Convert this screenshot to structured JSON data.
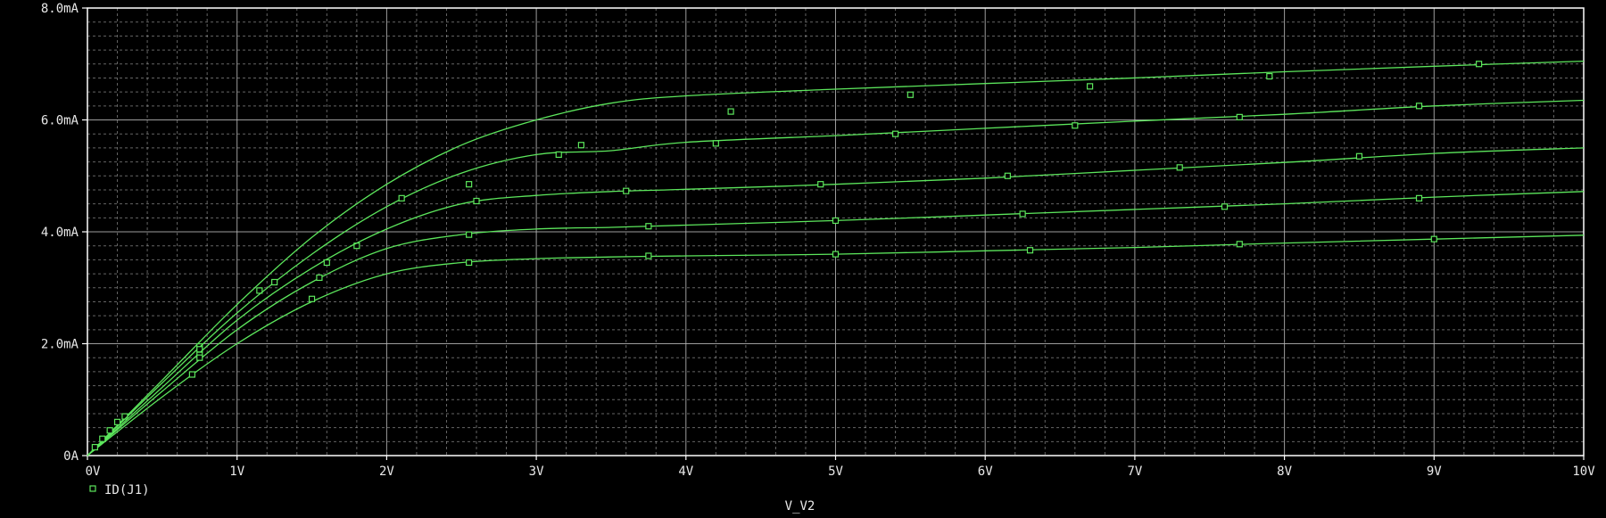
{
  "chart_data": {
    "type": "line",
    "xlabel": "V_V2",
    "ylabel": "",
    "xlim": [
      0,
      10
    ],
    "ylim": [
      0,
      8
    ],
    "x_ticks": [
      {
        "v": 0,
        "label": "0V"
      },
      {
        "v": 1,
        "label": "1V"
      },
      {
        "v": 2,
        "label": "2V"
      },
      {
        "v": 3,
        "label": "3V"
      },
      {
        "v": 4,
        "label": "4V"
      },
      {
        "v": 5,
        "label": "5V"
      },
      {
        "v": 6,
        "label": "6V"
      },
      {
        "v": 7,
        "label": "7V"
      },
      {
        "v": 8,
        "label": "8V"
      },
      {
        "v": 9,
        "label": "9V"
      },
      {
        "v": 10,
        "label": "10V"
      }
    ],
    "y_ticks": [
      {
        "v": 0,
        "label": "0A"
      },
      {
        "v": 2,
        "label": "2.0mA"
      },
      {
        "v": 4,
        "label": "4.0mA"
      },
      {
        "v": 6,
        "label": "6.0mA"
      },
      {
        "v": 8,
        "label": "8.0mA"
      }
    ],
    "grid": true,
    "legend_position": "bottom-left",
    "legend": [
      "ID(J1)"
    ],
    "colors": {
      "background": "#000000",
      "grid": "#b8b8b8",
      "axis": "#ffffff",
      "trace": "#5ce65c",
      "text": "#e8e8e8"
    },
    "series": [
      {
        "values": [
          [
            0,
            0
          ],
          [
            0.5,
            1.35
          ],
          [
            1,
            2.7
          ],
          [
            1.5,
            3.9
          ],
          [
            2,
            4.85
          ],
          [
            2.5,
            5.55
          ],
          [
            3,
            6.0
          ],
          [
            3.5,
            6.3
          ],
          [
            4,
            6.43
          ],
          [
            5,
            6.55
          ],
          [
            6,
            6.65
          ],
          [
            7,
            6.75
          ],
          [
            8,
            6.86
          ],
          [
            9,
            6.96
          ],
          [
            10,
            7.05
          ]
        ],
        "markers": [
          [
            0.25,
            0.7
          ],
          [
            0.75,
            1.95
          ],
          [
            1.15,
            2.95
          ],
          [
            1.8,
            3.75
          ],
          [
            2.55,
            4.85
          ],
          [
            3.3,
            5.55
          ],
          [
            4.3,
            6.15
          ],
          [
            5.5,
            6.45
          ],
          [
            6.7,
            6.6
          ],
          [
            7.9,
            6.78
          ],
          [
            9.3,
            7.0
          ]
        ]
      },
      {
        "values": [
          [
            0,
            0
          ],
          [
            0.5,
            1.3
          ],
          [
            1,
            2.55
          ],
          [
            1.5,
            3.6
          ],
          [
            2,
            4.45
          ],
          [
            2.5,
            5.05
          ],
          [
            3,
            5.38
          ],
          [
            3.5,
            5.45
          ],
          [
            4,
            5.6
          ],
          [
            5,
            5.72
          ],
          [
            6,
            5.85
          ],
          [
            7,
            5.98
          ],
          [
            8,
            6.1
          ],
          [
            9,
            6.25
          ],
          [
            10,
            6.35
          ]
        ],
        "markers": [
          [
            0.2,
            0.6
          ],
          [
            0.75,
            1.9
          ],
          [
            1.25,
            3.1
          ],
          [
            2.1,
            4.6
          ],
          [
            3.15,
            5.38
          ],
          [
            4.2,
            5.58
          ],
          [
            5.4,
            5.75
          ],
          [
            6.6,
            5.9
          ],
          [
            7.7,
            6.05
          ],
          [
            8.9,
            6.25
          ]
        ]
      },
      {
        "values": [
          [
            0,
            0
          ],
          [
            0.5,
            1.22
          ],
          [
            1,
            2.42
          ],
          [
            1.5,
            3.35
          ],
          [
            2,
            4.05
          ],
          [
            2.5,
            4.5
          ],
          [
            3,
            4.65
          ],
          [
            3.5,
            4.72
          ],
          [
            4,
            4.76
          ],
          [
            5,
            4.85
          ],
          [
            6,
            4.96
          ],
          [
            7,
            5.1
          ],
          [
            8,
            5.24
          ],
          [
            9,
            5.4
          ],
          [
            10,
            5.5
          ]
        ],
        "markers": [
          [
            0.15,
            0.45
          ],
          [
            0.75,
            1.8
          ],
          [
            1.6,
            3.45
          ],
          [
            2.6,
            4.55
          ],
          [
            3.6,
            4.73
          ],
          [
            4.9,
            4.85
          ],
          [
            6.15,
            5.0
          ],
          [
            7.3,
            5.15
          ],
          [
            8.5,
            5.35
          ]
        ]
      },
      {
        "values": [
          [
            0,
            0
          ],
          [
            0.5,
            1.15
          ],
          [
            1,
            2.25
          ],
          [
            1.5,
            3.1
          ],
          [
            2,
            3.7
          ],
          [
            2.5,
            3.95
          ],
          [
            3,
            4.05
          ],
          [
            3.5,
            4.08
          ],
          [
            4,
            4.12
          ],
          [
            5,
            4.2
          ],
          [
            6,
            4.3
          ],
          [
            7,
            4.4
          ],
          [
            8,
            4.5
          ],
          [
            9,
            4.62
          ],
          [
            10,
            4.72
          ]
        ],
        "markers": [
          [
            0.1,
            0.3
          ],
          [
            0.75,
            1.75
          ],
          [
            1.55,
            3.18
          ],
          [
            2.55,
            3.95
          ],
          [
            3.75,
            4.1
          ],
          [
            5.0,
            4.2
          ],
          [
            6.25,
            4.32
          ],
          [
            7.6,
            4.45
          ],
          [
            8.9,
            4.6
          ]
        ]
      },
      {
        "values": [
          [
            0,
            0
          ],
          [
            0.5,
            1.05
          ],
          [
            1,
            2.0
          ],
          [
            1.5,
            2.75
          ],
          [
            2,
            3.25
          ],
          [
            2.5,
            3.45
          ],
          [
            3,
            3.52
          ],
          [
            3.5,
            3.55
          ],
          [
            4,
            3.57
          ],
          [
            5,
            3.6
          ],
          [
            6,
            3.66
          ],
          [
            7,
            3.72
          ],
          [
            8,
            3.8
          ],
          [
            9,
            3.87
          ],
          [
            10,
            3.94
          ]
        ],
        "markers": [
          [
            0.05,
            0.15
          ],
          [
            0.7,
            1.45
          ],
          [
            1.5,
            2.8
          ],
          [
            2.55,
            3.45
          ],
          [
            3.75,
            3.57
          ],
          [
            5.0,
            3.6
          ],
          [
            6.3,
            3.67
          ],
          [
            7.7,
            3.78
          ],
          [
            9.0,
            3.87
          ]
        ]
      }
    ]
  }
}
